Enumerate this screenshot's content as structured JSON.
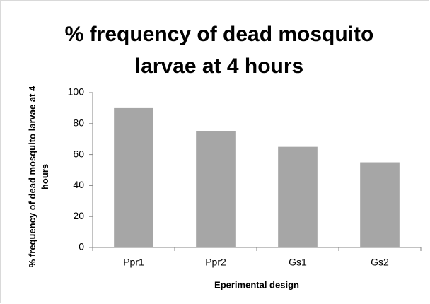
{
  "chart_data": {
    "type": "bar",
    "title": "% frequency of dead mosquito larvae at 4 hours",
    "x_label": "Eperimental design",
    "y_label": "% frequency of dead mosquito larvae at 4 hours",
    "categories": [
      "Ppr1",
      "Ppr2",
      "Gs1",
      "Gs2"
    ],
    "values": [
      90,
      75,
      65,
      55
    ],
    "color": "#a6a6a6",
    "ylim": [
      0,
      100
    ],
    "yticks": [
      0,
      20,
      40,
      60,
      80,
      100
    ],
    "grid": false
  }
}
